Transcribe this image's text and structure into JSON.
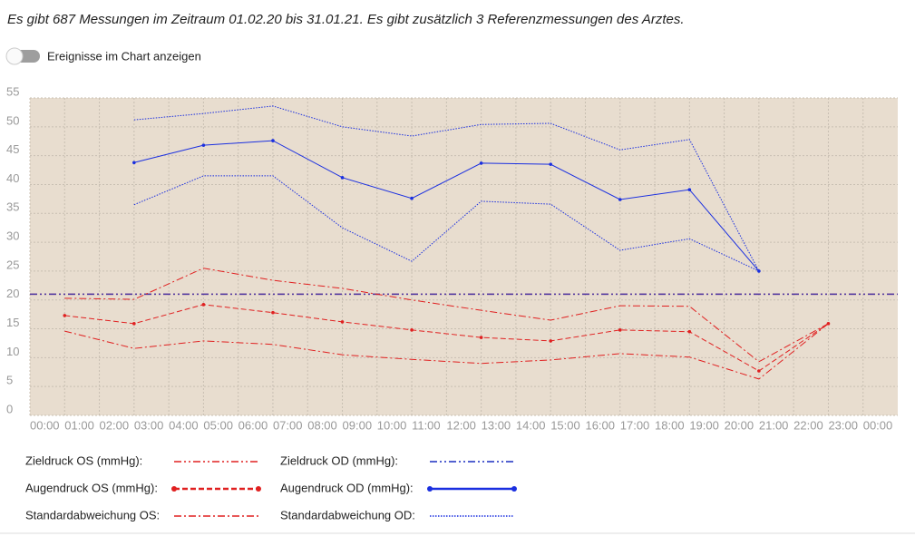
{
  "header": {
    "title": "Es gibt 687 Messungen im Zeitraum 01.02.20 bis 31.01.21. Es gibt zusätzlich 3 Referenzmessungen des Arztes.",
    "toggle_label": "Ereignisse im Chart anzeigen",
    "toggle_on": false
  },
  "chart_data": {
    "type": "line",
    "background": "#e8ddcf",
    "grid": true,
    "xlim": [
      0,
      25
    ],
    "xticks": [
      {
        "value": 0,
        "label": "00:00"
      },
      {
        "value": 1,
        "label": "01:00"
      },
      {
        "value": 2,
        "label": "02:00"
      },
      {
        "value": 3,
        "label": "03:00"
      },
      {
        "value": 4,
        "label": "04:00"
      },
      {
        "value": 5,
        "label": "05:00"
      },
      {
        "value": 6,
        "label": "06:00"
      },
      {
        "value": 7,
        "label": "07:00"
      },
      {
        "value": 8,
        "label": "08:00"
      },
      {
        "value": 9,
        "label": "09:00"
      },
      {
        "value": 10,
        "label": "10:00"
      },
      {
        "value": 11,
        "label": "11:00"
      },
      {
        "value": 12,
        "label": "12:00"
      },
      {
        "value": 13,
        "label": "13:00"
      },
      {
        "value": 14,
        "label": "14:00"
      },
      {
        "value": 15,
        "label": "15:00"
      },
      {
        "value": 16,
        "label": "16:00"
      },
      {
        "value": 17,
        "label": "17:00"
      },
      {
        "value": 18,
        "label": "18:00"
      },
      {
        "value": 19,
        "label": "19:00"
      },
      {
        "value": 20,
        "label": "20:00"
      },
      {
        "value": 21,
        "label": "21:00"
      },
      {
        "value": 22,
        "label": "22:00"
      },
      {
        "value": 23,
        "label": "23:00"
      },
      {
        "value": 24,
        "label": "00:00"
      }
    ],
    "ylim": [
      0,
      55
    ],
    "yticks": [
      0,
      5,
      10,
      15,
      20,
      25,
      30,
      35,
      40,
      45,
      50,
      55
    ],
    "series": [
      {
        "name": "Zieldruck OS (mmHg):",
        "color": "#e02020",
        "dash": "dash-dot-dot",
        "value": 21
      },
      {
        "name": "Zieldruck OD (mmHg):",
        "color": "#1a2fc0",
        "dash": "dash-dot-dot",
        "value": 21
      },
      {
        "name": "Augendruck OS (mmHg):",
        "color": "#e02020",
        "dash": "dashed",
        "markers": true,
        "x": [
          1,
          3,
          5,
          7,
          9,
          11,
          13,
          15,
          17,
          19,
          21,
          23
        ],
        "values": [
          17.3,
          15.9,
          19.2,
          17.8,
          16.2,
          14.8,
          13.5,
          12.9,
          14.8,
          14.5,
          7.7,
          15.9
        ]
      },
      {
        "name": "Augendruck OD (mmHg):",
        "color": "#1a2fe0",
        "dash": "solid",
        "markers": true,
        "x": [
          3,
          5,
          7,
          9,
          11,
          13,
          15,
          17,
          19,
          21
        ],
        "values": [
          43.8,
          46.8,
          47.6,
          41.2,
          37.6,
          43.7,
          43.5,
          37.4,
          39.1,
          25.0
        ]
      },
      {
        "name": "Standardabweichung OS:",
        "color": "#e02020",
        "dash": "dash-dot",
        "x": [
          1,
          3,
          5,
          7,
          9,
          11,
          13,
          15,
          17,
          19,
          21,
          23
        ],
        "upper": [
          20.3,
          20.1,
          25.5,
          23.4,
          22.0,
          20.0,
          18.2,
          16.5,
          19.0,
          18.9,
          9.3,
          15.9
        ],
        "lower": [
          14.6,
          11.6,
          12.9,
          12.3,
          10.5,
          9.7,
          9.0,
          9.6,
          10.7,
          10.1,
          6.3,
          15.9
        ]
      },
      {
        "name": "Standardabweichung OD:",
        "color": "#1a2fe0",
        "dash": "dotted",
        "x": [
          3,
          5,
          7,
          9,
          11,
          13,
          15,
          17,
          19,
          21
        ],
        "upper": [
          51.2,
          52.3,
          53.6,
          50.0,
          48.4,
          50.4,
          50.6,
          46.0,
          47.8,
          25.0
        ],
        "lower": [
          36.5,
          41.5,
          41.5,
          32.5,
          26.7,
          37.1,
          36.6,
          28.6,
          30.6,
          25.0
        ]
      }
    ]
  }
}
